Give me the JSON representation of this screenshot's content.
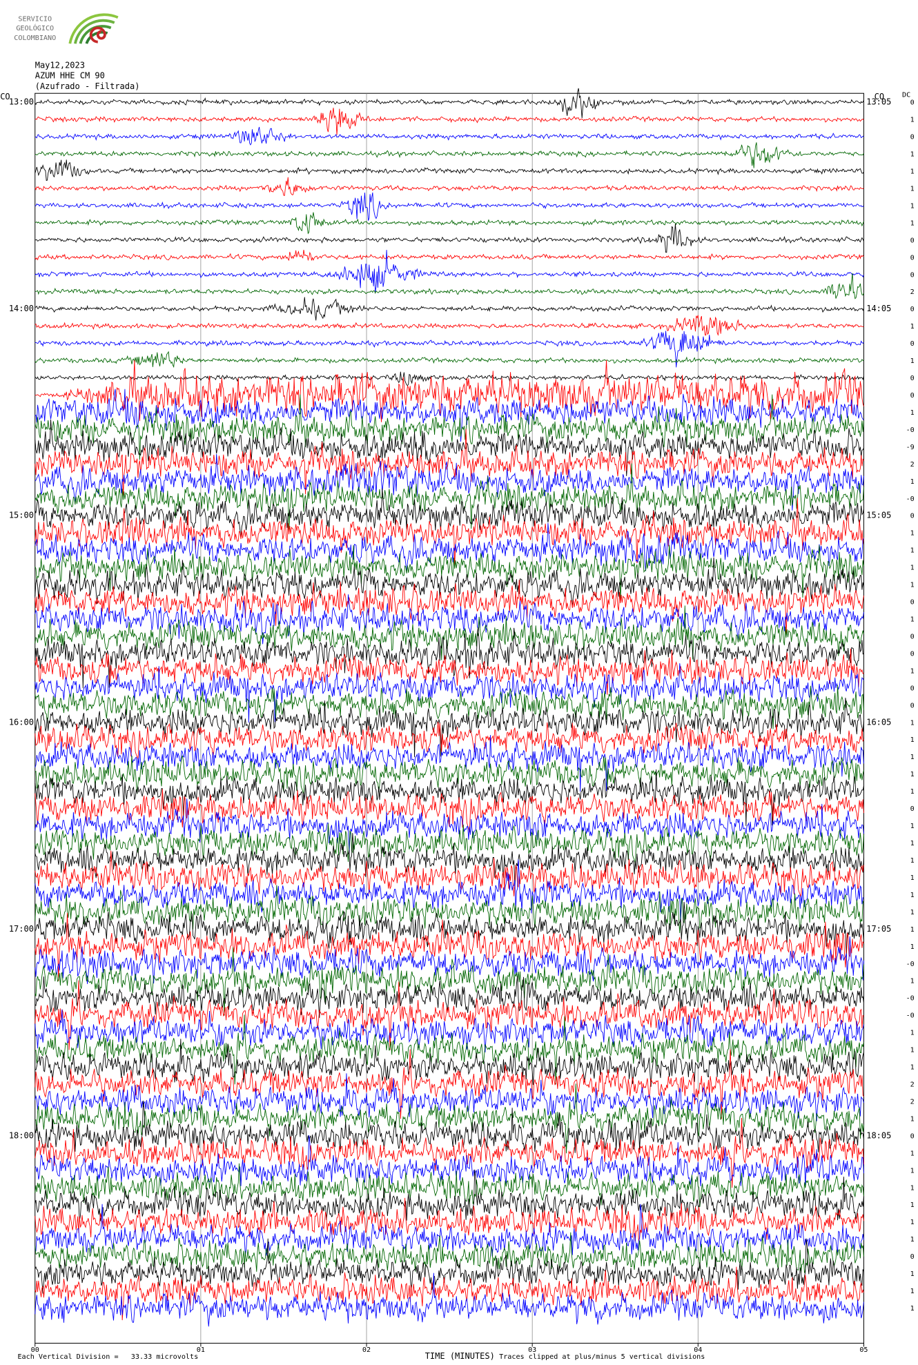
{
  "logo": {
    "lines": [
      "SERVICIO",
      "GEOLÓGICO",
      "COLOMBIANO"
    ]
  },
  "header": {
    "date": "May12,2023",
    "station": "AZUM HHE CM 90",
    "subtitle": "(Azufrado - Filtrada)"
  },
  "network_left": "CO",
  "network_right": "CO",
  "dc_header": "DC",
  "left_times": [
    "13:00",
    "14:00",
    "15:00",
    "16:00",
    "17:00",
    "18:00"
  ],
  "right_times": [
    "13:05",
    "14:05",
    "15:05",
    "16:05",
    "17:05",
    "18:05"
  ],
  "dc_offsets": [
    "0",
    "1",
    "0",
    "1",
    "1",
    "1",
    "1",
    "1",
    "0",
    "0",
    "0",
    "2",
    "0",
    "1",
    "0",
    "1",
    "0",
    "0",
    "1",
    "-0",
    "-9",
    "2",
    "1",
    "-0",
    "0",
    "1",
    "1",
    "1",
    "1",
    "0",
    "1",
    "0",
    "0",
    "1",
    "0",
    "0",
    "1",
    "1",
    "1",
    "1",
    "1",
    "0",
    "1",
    "1",
    "1",
    "1",
    "1",
    "1",
    "1",
    "1",
    "-0",
    "1",
    "-0",
    "-0",
    "1",
    "1",
    "1",
    "2",
    "2",
    "1",
    "0",
    "1",
    "1",
    "1",
    "1",
    "1",
    "1",
    "0",
    "1",
    "1",
    "1"
  ],
  "x_ticks": [
    "00",
    "01",
    "02",
    "03",
    "04",
    "05"
  ],
  "footer": {
    "scale": "Each Vertical Division =   33.33 microvolts",
    "axis_title": "TIME (MINUTES)",
    "clip_note": "Traces clipped at plus/minus 5 vertical divisions"
  }
}
